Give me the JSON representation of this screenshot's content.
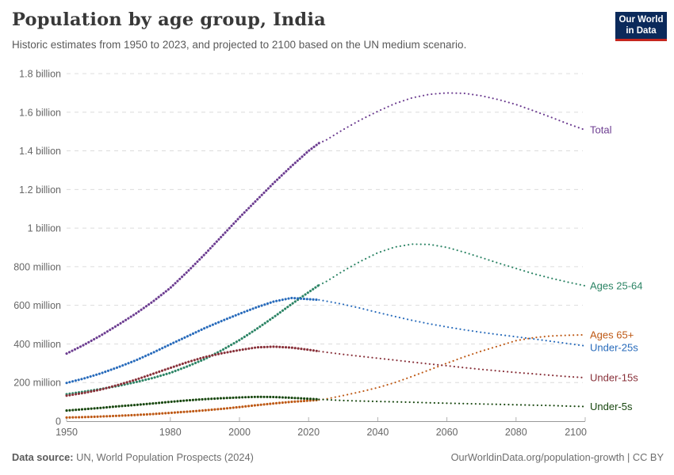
{
  "header": {
    "title": "Population by age group, India",
    "subtitle": "Historic estimates from 1950 to 2023, and projected to 2100 based on the UN medium scenario.",
    "logo": {
      "line1": "Our World",
      "line2": "in Data",
      "bg_color": "#0B2A5B",
      "accent_color": "#C6261E"
    }
  },
  "footer": {
    "source_label": "Data source:",
    "source_text": " UN, World Population Prospects (2024)",
    "right_text": "OurWorldinData.org/population-growth | CC BY"
  },
  "chart_data": {
    "type": "line",
    "title": "Population by age group, India",
    "unit": "millions of people",
    "xlim": [
      1950,
      2100
    ],
    "ylim": [
      0,
      1800
    ],
    "grid": true,
    "historic_end_year": 2023,
    "x_ticks": [
      1950,
      1980,
      2000,
      2020,
      2040,
      2060,
      2080,
      2100
    ],
    "y_ticks": [
      {
        "value": 0,
        "label": "0"
      },
      {
        "value": 200,
        "label": "200 million"
      },
      {
        "value": 400,
        "label": "400 million"
      },
      {
        "value": 600,
        "label": "600 million"
      },
      {
        "value": 800,
        "label": "800 million"
      },
      {
        "value": 1000,
        "label": "1 billion"
      },
      {
        "value": 1200,
        "label": "1.2 billion"
      },
      {
        "value": 1400,
        "label": "1.4 billion"
      },
      {
        "value": 1600,
        "label": "1.6 billion"
      },
      {
        "value": 1800,
        "label": "1.8 billion"
      }
    ],
    "x": [
      1950,
      1955,
      1960,
      1965,
      1970,
      1975,
      1980,
      1985,
      1990,
      1995,
      2000,
      2005,
      2010,
      2015,
      2020,
      2023,
      2025,
      2030,
      2035,
      2040,
      2045,
      2050,
      2055,
      2060,
      2065,
      2070,
      2075,
      2080,
      2085,
      2090,
      2095,
      2100
    ],
    "series": [
      {
        "name": "Total",
        "color": "#6D3E91",
        "values": [
          350,
          395,
          445,
          500,
          557,
          620,
          690,
          775,
          865,
          960,
          1055,
          1145,
          1235,
          1320,
          1400,
          1440,
          1455,
          1510,
          1560,
          1605,
          1645,
          1675,
          1693,
          1700,
          1698,
          1685,
          1665,
          1640,
          1608,
          1575,
          1540,
          1508
        ]
      },
      {
        "name": "Ages 25-64",
        "color": "#2C8465",
        "values": [
          140,
          153,
          167,
          183,
          202,
          224,
          250,
          284,
          322,
          368,
          420,
          478,
          540,
          605,
          668,
          705,
          722,
          778,
          828,
          872,
          902,
          917,
          915,
          900,
          875,
          847,
          818,
          791,
          764,
          741,
          720,
          701
        ]
      },
      {
        "name": "Ages 65+",
        "color": "#BE5915",
        "values": [
          19,
          21,
          24,
          28,
          32,
          37,
          43,
          49,
          56,
          64,
          73,
          83,
          92,
          100,
          106,
          110,
          115,
          133,
          152,
          174,
          200,
          232,
          266,
          300,
          333,
          363,
          390,
          417,
          432,
          441,
          445,
          447
        ]
      },
      {
        "name": "Under-25s",
        "color": "#286BBB",
        "values": [
          198,
          221,
          248,
          280,
          315,
          355,
          398,
          440,
          482,
          520,
          556,
          590,
          620,
          638,
          632,
          628,
          622,
          605,
          585,
          563,
          542,
          522,
          504,
          488,
          473,
          460,
          448,
          437,
          426,
          414,
          402,
          390
        ]
      },
      {
        "name": "Under-15s",
        "color": "#883039",
        "values": [
          132,
          146,
          164,
          188,
          215,
          245,
          276,
          306,
          332,
          352,
          368,
          382,
          386,
          381,
          370,
          362,
          357,
          346,
          336,
          326,
          316,
          306,
          296,
          287,
          277,
          268,
          260,
          252,
          245,
          238,
          231,
          225
        ]
      },
      {
        "name": "Under-5s",
        "color": "#18470F",
        "values": [
          55,
          62,
          69,
          77,
          84,
          92,
          100,
          108,
          114,
          119,
          123,
          126,
          125,
          121,
          116,
          113,
          111,
          107,
          104,
          102,
          100,
          98,
          95,
          93,
          91,
          89,
          87,
          85,
          83,
          81,
          78,
          76
        ]
      }
    ]
  }
}
